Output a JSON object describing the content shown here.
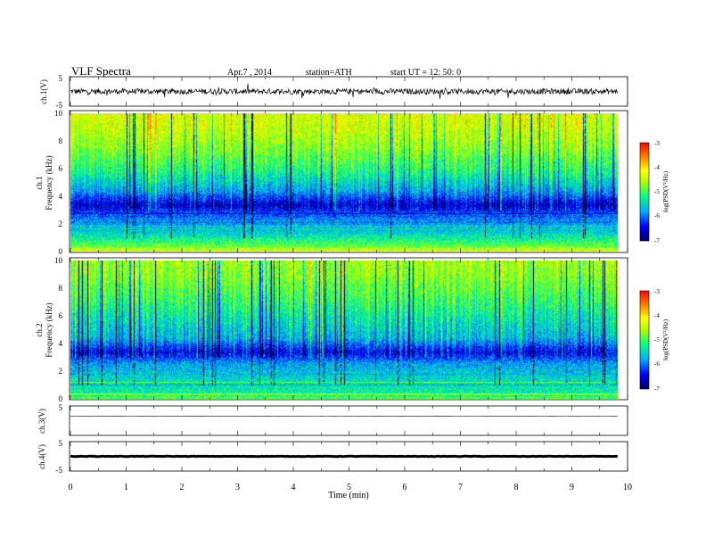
{
  "header": {
    "title": "VLF  Spectra",
    "date": "Apr.7  , 2014",
    "station": "station=ATH",
    "start": "start  UT  =    12: 50: 0"
  },
  "chart_data": [
    {
      "id": "ch1-waveform",
      "type": "line",
      "ylabel": "ch.1(V)",
      "ylim": [
        -5,
        5
      ],
      "yticks": [
        "5",
        "-5"
      ],
      "xlim": [
        0,
        10
      ],
      "data_extent_min": 9.82,
      "baseline": 0,
      "amplitude": 0.8,
      "color": "#000000"
    },
    {
      "id": "ch1-spectrogram",
      "type": "heatmap",
      "ylabel_top": "ch.1",
      "ylabel": "Frequency  (kHz)",
      "ylim": [
        0,
        10
      ],
      "yticks": [
        "0",
        "2",
        "4",
        "6",
        "8",
        "10"
      ],
      "xlim": [
        0,
        10
      ],
      "data_extent_min": 9.82,
      "colorbar_label": "log(PSD(V²/Hz)",
      "colorbar_ticks": [
        "-3",
        "-4",
        "-5",
        "-6",
        "-7"
      ],
      "colorbar_range": [
        -7,
        -3
      ],
      "level_profile_kHz": [
        [
          0.0,
          -4.2
        ],
        [
          0.6,
          -5.0
        ],
        [
          1.5,
          -5.6
        ],
        [
          2.6,
          -6.0
        ],
        [
          3.4,
          -6.6
        ],
        [
          4.4,
          -5.8
        ],
        [
          5.8,
          -5.2
        ],
        [
          7.5,
          -4.7
        ],
        [
          9.0,
          -4.4
        ],
        [
          10.0,
          -4.3
        ]
      ]
    },
    {
      "id": "ch2-spectrogram",
      "type": "heatmap",
      "ylabel_top": "ch.2",
      "ylabel": "Frequency  (kHz)",
      "ylim": [
        0,
        10
      ],
      "yticks": [
        "0",
        "2",
        "4",
        "6",
        "8",
        "10"
      ],
      "xlim": [
        0,
        10
      ],
      "data_extent_min": 9.82,
      "colorbar_label": "log(PSD(V²/Hz)",
      "colorbar_ticks": [
        "-3",
        "-4",
        "-5",
        "-6",
        "-7"
      ],
      "colorbar_range": [
        -7,
        -3
      ],
      "level_profile_kHz": [
        [
          0.0,
          -4.9
        ],
        [
          0.5,
          -5.3
        ],
        [
          1.5,
          -5.5
        ],
        [
          2.6,
          -5.8
        ],
        [
          3.4,
          -6.5
        ],
        [
          4.4,
          -5.7
        ],
        [
          5.8,
          -5.4
        ],
        [
          7.5,
          -5.0
        ],
        [
          9.0,
          -4.7
        ],
        [
          10.0,
          -4.6
        ]
      ]
    },
    {
      "id": "ch3-waveform",
      "type": "line",
      "ylabel": "ch.3(V)",
      "ylim": [
        -5,
        5
      ],
      "yticks": [
        "5"
      ],
      "xlim": [
        0,
        10
      ],
      "data_extent_min": 9.82,
      "baseline": 1.5,
      "amplitude": 0.1,
      "color": "#000000"
    },
    {
      "id": "ch4-waveform",
      "type": "line",
      "ylabel": "ch.4(V)",
      "ylim": [
        -5,
        5
      ],
      "yticks": [
        "5",
        "-5"
      ],
      "xlim": [
        0,
        10
      ],
      "data_extent_min": 9.82,
      "baseline": 0,
      "amplitude": 0.15,
      "color": "#000000"
    }
  ],
  "x_axis": {
    "label": "Time  (min)",
    "ticks": [
      "0",
      "1",
      "2",
      "3",
      "4",
      "5",
      "6",
      "7",
      "8",
      "9",
      "10"
    ]
  }
}
